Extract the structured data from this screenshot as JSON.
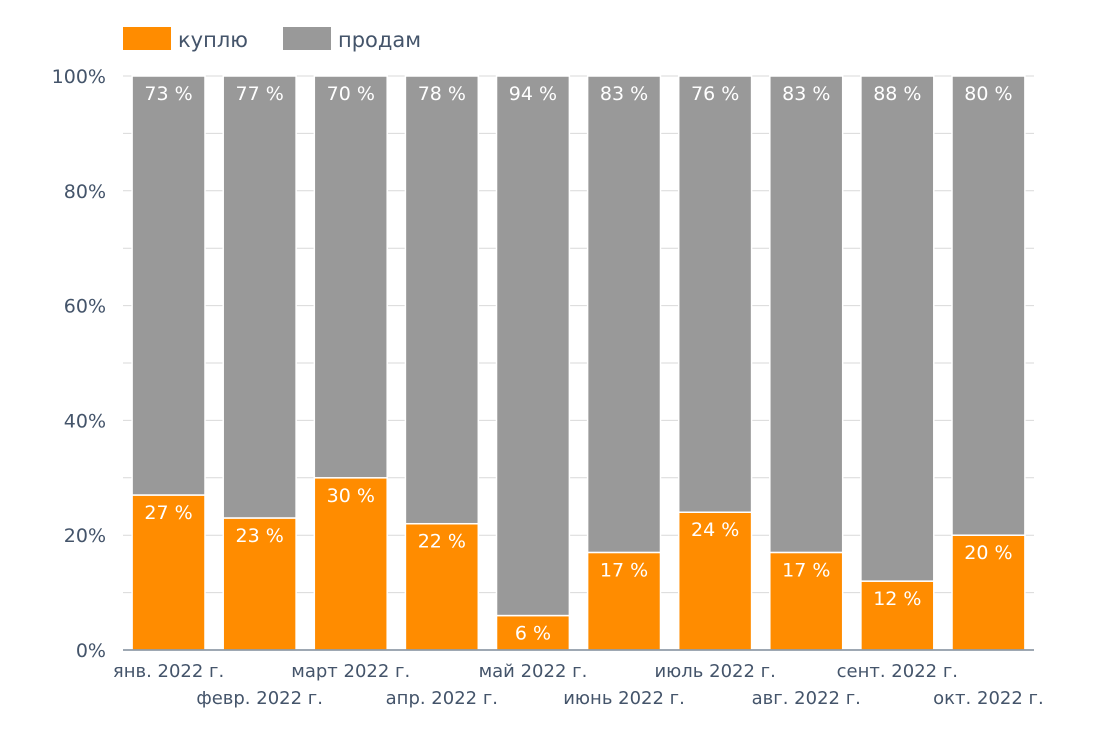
{
  "chart_data": {
    "type": "bar",
    "stacked": true,
    "categories": [
      "янв. 2022 г.",
      "февр. 2022 г.",
      "март 2022 г.",
      "апр. 2022 г.",
      "май 2022 г.",
      "июнь 2022 г.",
      "июль 2022 г.",
      "авг. 2022 г.",
      "сент. 2022 г.",
      "окт. 2022 г."
    ],
    "series": [
      {
        "name": "куплю",
        "color": "#ff8c00",
        "values": [
          27,
          23,
          30,
          22,
          6,
          17,
          24,
          17,
          12,
          20
        ],
        "labels": [
          "27 %",
          "23 %",
          "30 %",
          "22 %",
          "6 %",
          "17 %",
          "24 %",
          "17 %",
          "12 %",
          "20 %"
        ]
      },
      {
        "name": "продам",
        "color": "#999999",
        "values": [
          73,
          77,
          70,
          78,
          94,
          83,
          76,
          83,
          88,
          80
        ],
        "labels": [
          "73 %",
          "77 %",
          "70 %",
          "78 %",
          "94 %",
          "83 %",
          "76 %",
          "83 %",
          "88 %",
          "80 %"
        ]
      }
    ],
    "y_ticks": [
      "0%",
      "20%",
      "40%",
      "60%",
      "80%",
      "100%"
    ],
    "ylim": [
      0,
      100
    ],
    "legend_position": "top-left",
    "grid": true,
    "title": "",
    "xlabel": "",
    "ylabel": ""
  }
}
